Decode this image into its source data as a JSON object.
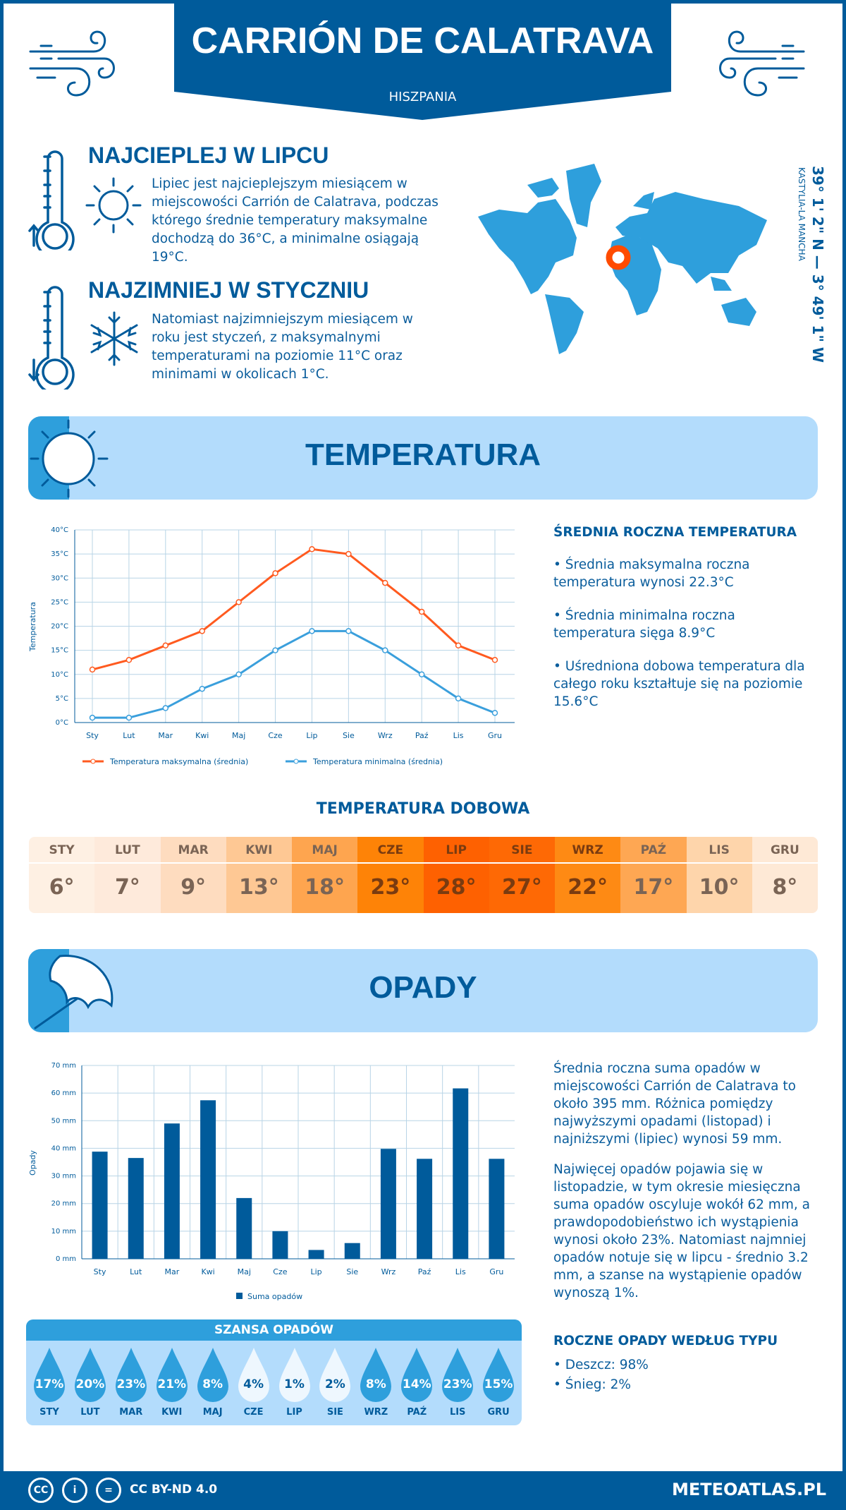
{
  "header": {
    "title": "CARRIÓN DE CALATRAVA",
    "country": "HISZPANIA"
  },
  "warmest": {
    "heading": "NAJCIEPLEJ W LIPCU",
    "text": "Lipiec jest najcieplejszym miesiącem w miejscowości Carrión de Calatrava, podczas którego średnie temperatury maksymalne dochodzą do 36°C, a minimalne osiągają 19°C."
  },
  "coldest": {
    "heading": "NAJZIMNIEJ W STYCZNIU",
    "text": "Natomiast najzimniejszym miesiącem w roku jest styczeń, z maksymalnymi temperaturami na poziomie 11°C oraz minimami w okolicach 1°C."
  },
  "location": {
    "coords": "39° 1' 2\" N — 3° 49' 1\" W",
    "region": "KASTYLIA-LA MANCHA"
  },
  "temperature": {
    "section_title": "TEMPERATURA",
    "side_heading": "ŚREDNIA ROCZNA TEMPERATURA",
    "bullets": [
      "• Średnia maksymalna roczna temperatura wynosi 22.3°C",
      "• Średnia minimalna roczna temperatura sięga 8.9°C",
      "• Uśredniona dobowa temperatura dla całego roku kształtuje się na poziomie 15.6°C"
    ],
    "daily_heading": "TEMPERATURA DOBOWA",
    "daily": [
      {
        "m": "STY",
        "v": "6°",
        "bg": "#fef0e3"
      },
      {
        "m": "LUT",
        "v": "7°",
        "bg": "#feeadb"
      },
      {
        "m": "MAR",
        "v": "9°",
        "bg": "#fedcbf"
      },
      {
        "m": "KWI",
        "v": "13°",
        "bg": "#fec894"
      },
      {
        "m": "MAJ",
        "v": "18°",
        "bg": "#fea54f"
      },
      {
        "m": "CZE",
        "v": "23°",
        "bg": "#fe8307"
      },
      {
        "m": "LIP",
        "v": "28°",
        "bg": "#fe6101"
      },
      {
        "m": "SIE",
        "v": "27°",
        "bg": "#fe6905"
      },
      {
        "m": "WRZ",
        "v": "22°",
        "bg": "#fe8a14"
      },
      {
        "m": "PAŹ",
        "v": "17°",
        "bg": "#fea753"
      },
      {
        "m": "LIS",
        "v": "10°",
        "bg": "#fed5ab"
      },
      {
        "m": "GRU",
        "v": "8°",
        "bg": "#fee9d6"
      }
    ]
  },
  "precipitation": {
    "section_title": "OPADY",
    "paragraphs": [
      "Średnia roczna suma opadów w miejscowości Carrión de Calatrava to około 395 mm. Różnica pomiędzy najwyższymi opadami (listopad) i najniższymi (lipiec) wynosi 59 mm.",
      "Najwięcej opadów pojawia się w listopadzie, w tym okresie miesięczna suma opadów oscyluje wokół 62 mm, a prawdopodobieństwo ich wystąpienia wynosi około 23%. Natomiast najmniej opadów notuje się w lipcu - średnio 3.2 mm, a szanse na wystąpienie opadów wynoszą 1%."
    ],
    "chance_heading": "SZANSA OPADÓW",
    "chance": [
      {
        "m": "STY",
        "v": "17%"
      },
      {
        "m": "LUT",
        "v": "20%"
      },
      {
        "m": "MAR",
        "v": "23%"
      },
      {
        "m": "KWI",
        "v": "21%"
      },
      {
        "m": "MAJ",
        "v": "8%"
      },
      {
        "m": "CZE",
        "v": "4%"
      },
      {
        "m": "LIP",
        "v": "1%"
      },
      {
        "m": "SIE",
        "v": "2%"
      },
      {
        "m": "WRZ",
        "v": "8%"
      },
      {
        "m": "PAŹ",
        "v": "14%"
      },
      {
        "m": "LIS",
        "v": "23%"
      },
      {
        "m": "GRU",
        "v": "15%"
      }
    ],
    "type_heading": "ROCZNE OPADY WEDŁUG TYPU",
    "types": [
      "• Deszcz: 98%",
      "• Śnieg: 2%"
    ]
  },
  "footer": {
    "license": "CC BY-ND 4.0",
    "brand": "METEOATLAS.PL",
    "cc_icons": [
      "CC",
      "i",
      "="
    ]
  },
  "colors": {
    "dark_blue": "#005b9b",
    "mid_blue": "#2e9fdc",
    "light_blue": "#b3dcfc",
    "max_line": "#ff5a1f",
    "min_line": "#3a9fdc",
    "marker": "#ff4b00"
  },
  "chart_data": [
    {
      "type": "line",
      "categories": [
        "Sty",
        "Lut",
        "Mar",
        "Kwi",
        "Maj",
        "Cze",
        "Lip",
        "Sie",
        "Wrz",
        "Paź",
        "Lis",
        "Gru"
      ],
      "ylabel": "Temperatura",
      "ylim": [
        0,
        40
      ],
      "yticks": [
        "0°C",
        "5°C",
        "10°C",
        "15°C",
        "20°C",
        "25°C",
        "30°C",
        "35°C",
        "40°C"
      ],
      "grid": true,
      "legend": "bottom",
      "series": [
        {
          "name": "Temperatura maksymalna (średnia)",
          "color": "#ff5a1f",
          "values": [
            11,
            13,
            16,
            19,
            25,
            31,
            36,
            35,
            29,
            23,
            16,
            13
          ]
        },
        {
          "name": "Temperatura minimalna (średnia)",
          "color": "#3a9fdc",
          "values": [
            1,
            1,
            3,
            7,
            10,
            15,
            19,
            19,
            15,
            10,
            5,
            2
          ]
        }
      ]
    },
    {
      "type": "bar",
      "categories": [
        "Sty",
        "Lut",
        "Mar",
        "Kwi",
        "Maj",
        "Cze",
        "Lip",
        "Sie",
        "Wrz",
        "Paź",
        "Lis",
        "Gru"
      ],
      "ylabel": "Opady",
      "ylim": [
        0,
        70
      ],
      "yticks": [
        "0 mm",
        "10 mm",
        "20 mm",
        "30 mm",
        "40 mm",
        "50 mm",
        "60 mm",
        "70 mm"
      ],
      "grid": true,
      "legend": "bottom",
      "series": [
        {
          "name": "Suma opadów",
          "color": "#005b9b",
          "values": [
            38.8,
            36.5,
            49,
            57.4,
            22,
            10,
            3.2,
            5.7,
            39.8,
            36.2,
            61.7,
            36.2
          ]
        }
      ]
    }
  ]
}
